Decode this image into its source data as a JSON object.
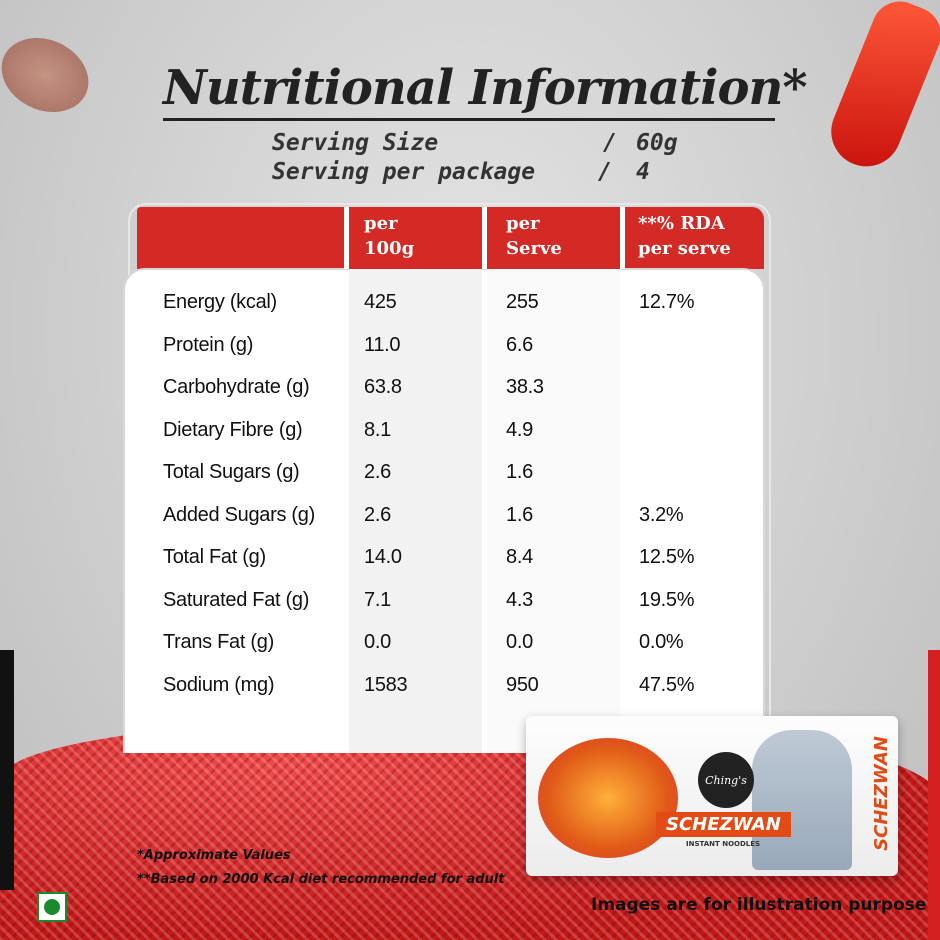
{
  "title": "Nutritional Information*",
  "serving": [
    {
      "label": "Serving Size",
      "value": "60g"
    },
    {
      "label": "Serving per package",
      "value": "4"
    }
  ],
  "table": {
    "headers": [
      "per 100g",
      "per Serve",
      "**% RDA per serve"
    ],
    "header_lines": [
      [
        "per",
        "100g"
      ],
      [
        "per",
        "Serve"
      ],
      [
        "**% RDA",
        "per serve"
      ]
    ],
    "rows": [
      {
        "nutrient": "Energy (kcal)",
        "per_100g": "425",
        "per_serve": "255",
        "rda": "12.7%"
      },
      {
        "nutrient": "Protein (g)",
        "per_100g": "11.0",
        "per_serve": "6.6",
        "rda": ""
      },
      {
        "nutrient": "Carbohydrate (g)",
        "per_100g": "63.8",
        "per_serve": "38.3",
        "rda": ""
      },
      {
        "nutrient": "Dietary Fibre (g)",
        "per_100g": "8.1",
        "per_serve": "4.9",
        "rda": ""
      },
      {
        "nutrient": "Total Sugars (g)",
        "per_100g": "2.6",
        "per_serve": "1.6",
        "rda": ""
      },
      {
        "nutrient": "Added Sugars (g)",
        "per_100g": "2.6",
        "per_serve": "1.6",
        "rda": "3.2%"
      },
      {
        "nutrient": "Total Fat (g)",
        "per_100g": "14.0",
        "per_serve": "8.4",
        "rda": "12.5%"
      },
      {
        "nutrient": "Saturated Fat (g)",
        "per_100g": "7.1",
        "per_serve": "4.3",
        "rda": "19.5%"
      },
      {
        "nutrient": "Trans Fat (g)",
        "per_100g": "0.0",
        "per_serve": "0.0",
        "rda": "0.0%"
      },
      {
        "nutrient": "Sodium (mg)",
        "per_100g": "1583",
        "per_serve": "950",
        "rda": "47.5%"
      }
    ]
  },
  "package": {
    "brand": "Ching's",
    "variant": "SCHEZWAN",
    "subtitle": "INSTANT NOODLES"
  },
  "notes": [
    "*Approximate Values",
    "**Based on 2000 Kcal diet recommended for adult"
  ],
  "disclaimer": "Images are for illustration purpose",
  "colors": {
    "header_red": "#d42a26",
    "veg_green": "#1a8a2a",
    "package_orange": "#e34b16"
  }
}
